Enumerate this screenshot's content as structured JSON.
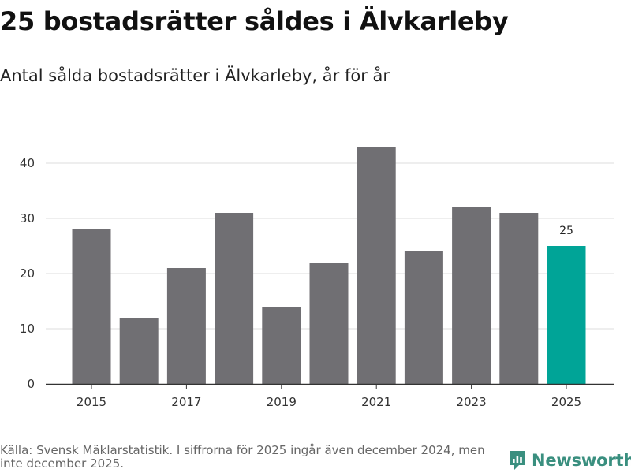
{
  "title": "25 bostadsrätter såldes i Älvkarleby",
  "subtitle": "Antal sålda bostadsrätter i Älvkarleby, år för år",
  "footer": {
    "source": "Källa: Svensk Mäklarstatistik. I siffrorna för 2025 ingår även december 2024, men inte december 2025."
  },
  "brand": {
    "name": "Newsworthy",
    "icon": "newsworthy-logo-icon"
  },
  "colors": {
    "bar": "#706f73",
    "highlight": "#00a497",
    "grid": "#dddddd",
    "axis": "#333333",
    "brand": "#3a8f7f"
  },
  "chart_data": {
    "type": "bar",
    "categories": [
      "2015",
      "2016",
      "2017",
      "2018",
      "2019",
      "2020",
      "2021",
      "2022",
      "2023",
      "2024",
      "2025"
    ],
    "values": [
      28,
      12,
      21,
      31,
      14,
      22,
      43,
      24,
      32,
      31,
      25
    ],
    "highlight_index": 10,
    "x_tick_labels": [
      "2015",
      "2017",
      "2019",
      "2021",
      "2023",
      "2025"
    ],
    "y_ticks": [
      0,
      10,
      20,
      30,
      40
    ],
    "ylim": [
      0,
      45
    ],
    "data_labels": [
      {
        "category": "2025",
        "text": "25"
      }
    ],
    "title": "25 bostadsrätter såldes i Älvkarleby",
    "xlabel": "",
    "ylabel": "",
    "grid": true
  }
}
